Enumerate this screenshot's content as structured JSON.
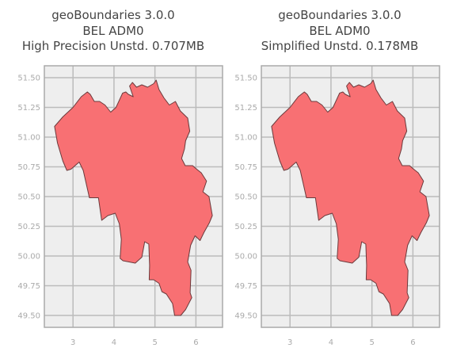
{
  "style": {
    "background": "#eeeeee",
    "grid_color": "#bbbbbb",
    "frame_color": "#aaaaaa",
    "tick_label_color": "#aaaaaa",
    "title_color": "#444444",
    "fill_color": "#f87073",
    "edge_color": "#6b3a3c"
  },
  "panels": [
    {
      "title_line1": "geoBoundaries 3.0.0",
      "title_line2": "BEL ADM0",
      "title_line3": "High Precision Unstd. 0.707MB"
    },
    {
      "title_line1": "geoBoundaries 3.0.0",
      "title_line2": "BEL ADM0",
      "title_line3": "Simplified Unstd. 0.178MB"
    }
  ],
  "chart_data": {
    "type": "map",
    "region": "BEL ADM0",
    "xlim": [
      2.3,
      6.65
    ],
    "ylim": [
      49.4,
      51.6
    ],
    "x_ticks": [
      "3",
      "4",
      "5",
      "6"
    ],
    "y_ticks": [
      "51.50",
      "51.25",
      "51.00",
      "50.75",
      "50.50",
      "50.25",
      "50.00",
      "49.75",
      "49.50"
    ],
    "grid": true,
    "outline": [
      [
        2.55,
        51.09
      ],
      [
        2.75,
        51.17
      ],
      [
        3.0,
        51.25
      ],
      [
        3.2,
        51.34
      ],
      [
        3.35,
        51.38
      ],
      [
        3.42,
        51.36
      ],
      [
        3.52,
        51.3
      ],
      [
        3.65,
        51.3
      ],
      [
        3.78,
        51.27
      ],
      [
        3.92,
        51.21
      ],
      [
        4.05,
        51.25
      ],
      [
        4.21,
        51.37
      ],
      [
        4.29,
        51.38
      ],
      [
        4.35,
        51.36
      ],
      [
        4.47,
        51.34
      ],
      [
        4.38,
        51.43
      ],
      [
        4.45,
        51.46
      ],
      [
        4.55,
        51.42
      ],
      [
        4.68,
        51.44
      ],
      [
        4.82,
        51.42
      ],
      [
        4.97,
        51.45
      ],
      [
        5.03,
        51.48
      ],
      [
        5.1,
        51.4
      ],
      [
        5.22,
        51.33
      ],
      [
        5.35,
        51.27
      ],
      [
        5.5,
        51.3
      ],
      [
        5.62,
        51.22
      ],
      [
        5.8,
        51.16
      ],
      [
        5.85,
        51.05
      ],
      [
        5.75,
        50.97
      ],
      [
        5.72,
        50.9
      ],
      [
        5.65,
        50.82
      ],
      [
        5.74,
        50.76
      ],
      [
        5.92,
        50.76
      ],
      [
        6.02,
        50.73
      ],
      [
        6.13,
        50.7
      ],
      [
        6.26,
        50.63
      ],
      [
        6.17,
        50.54
      ],
      [
        6.32,
        50.5
      ],
      [
        6.4,
        50.34
      ],
      [
        6.33,
        50.28
      ],
      [
        6.2,
        50.2
      ],
      [
        6.1,
        50.13
      ],
      [
        5.98,
        50.17
      ],
      [
        5.87,
        50.09
      ],
      [
        5.8,
        49.95
      ],
      [
        5.88,
        49.88
      ],
      [
        5.86,
        49.69
      ],
      [
        5.9,
        49.65
      ],
      [
        5.75,
        49.55
      ],
      [
        5.63,
        49.5
      ],
      [
        5.48,
        49.5
      ],
      [
        5.43,
        49.6
      ],
      [
        5.28,
        49.68
      ],
      [
        5.17,
        49.7
      ],
      [
        5.1,
        49.77
      ],
      [
        4.97,
        49.8
      ],
      [
        4.86,
        49.8
      ],
      [
        4.87,
        49.92
      ],
      [
        4.85,
        50.1
      ],
      [
        4.75,
        50.12
      ],
      [
        4.68,
        49.99
      ],
      [
        4.52,
        49.94
      ],
      [
        4.22,
        49.96
      ],
      [
        4.15,
        49.98
      ],
      [
        4.18,
        50.14
      ],
      [
        4.13,
        50.27
      ],
      [
        4.03,
        50.36
      ],
      [
        3.85,
        50.34
      ],
      [
        3.7,
        50.3
      ],
      [
        3.62,
        50.49
      ],
      [
        3.4,
        50.49
      ],
      [
        3.25,
        50.72
      ],
      [
        3.15,
        50.79
      ],
      [
        2.95,
        50.73
      ],
      [
        2.85,
        50.72
      ],
      [
        2.75,
        50.8
      ],
      [
        2.62,
        50.95
      ],
      [
        2.55,
        51.09
      ]
    ]
  }
}
